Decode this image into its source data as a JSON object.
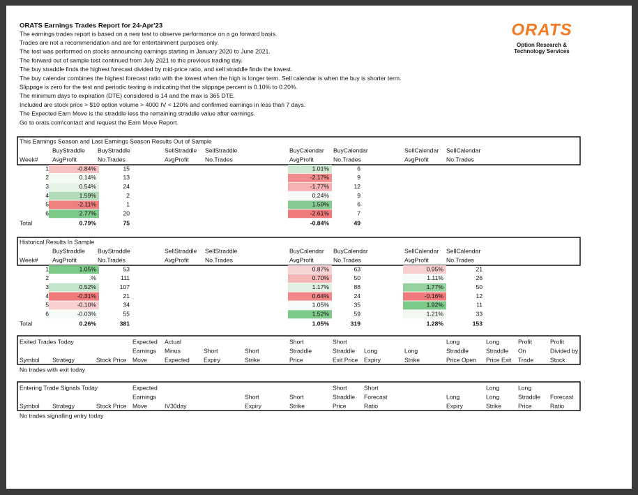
{
  "header": {
    "title": "ORATS Earnings Trades Report for 24-Apr'23",
    "lines": [
      "The earnings trades report is based on a new test to observe performance on a go forward basis.",
      "Trades are not a recommendation and are for entertainment purposes only.",
      "The test was performed on stocks announcing earnings starting in January 2020 to June 2021.",
      "The forward out of sample test continued from July 2021 to the previous trading day.",
      "The buy straddle finds the highest forecast divided by mid-price ratio, and sell straddle finds the lowest.",
      "The buy calendar combines the highest forecast ratio with the lowest when the high is longer term. Sell calendar is when the buy is shorter term.",
      "Slippage is zero for the test and periodic testing is indicating that the slippage percent is 0.10% to 0.20%.",
      "The minimum days to expiration (DTE) considered is 14 and the max is 365 DTE.",
      "Included are stock price > $10 option volume > 4000 IV < 120% and confirmed earnings in less than 7 days.",
      "The Expected Earn Move is the straddle less the remaining straddle value after earnings.",
      "Go to orats.com\\contact and request the Earn Move Report."
    ],
    "logo": {
      "name": "ORATS",
      "tagline": [
        "Option Research &",
        "Technology Services"
      ]
    }
  },
  "tables": [
    {
      "title": "This Earnings Season and Last Earnings Season Results Out of Sample",
      "columns": [
        [
          "Week#"
        ],
        [
          "BuyStraddle",
          "AvgProfit"
        ],
        [
          "BuyStraddle",
          "No.Trades"
        ],
        [
          "SellStraddle",
          "AvgProfit"
        ],
        [
          "SellStraddle",
          "No.Trades"
        ],
        [
          "BuyCalendar",
          "AvgProfit"
        ],
        [
          "BuyCalendar",
          "No.Trades"
        ],
        [
          "SellCalendar",
          "AvgProfit"
        ],
        [
          "SellCalendar",
          "No.Trades"
        ]
      ],
      "rows": [
        [
          "1",
          {
            "text": "-0.84%",
            "fill": "#f6c3c3"
          },
          "15",
          null,
          null,
          {
            "text": "1.01%",
            "fill": "#cfe9d2"
          },
          "6",
          null,
          null
        ],
        [
          "2",
          {
            "text": "0.14%",
            "fill": "#f3f9f3"
          },
          "13",
          null,
          null,
          {
            "text": "-2.17%",
            "fill": "#f28b8b"
          },
          "9",
          null,
          null
        ],
        [
          "3",
          {
            "text": "0.54%",
            "fill": "#e6f3e7"
          },
          "24",
          null,
          null,
          {
            "text": "-1.77%",
            "fill": "#f5b1b1"
          },
          "12",
          null,
          null
        ],
        [
          "4",
          {
            "text": "1.59%",
            "fill": "#b2ddb8"
          },
          "2",
          null,
          null,
          {
            "text": "0.24%",
            "fill": "#f6faf6"
          },
          "9",
          null,
          null
        ],
        [
          "5",
          {
            "text": "-2.11%",
            "fill": "#f07f7f"
          },
          "1",
          null,
          null,
          {
            "text": "1.59%",
            "fill": "#86cc92"
          },
          "6",
          null,
          null
        ],
        [
          "6",
          {
            "text": "2.77%",
            "fill": "#7cc98a"
          },
          "20",
          null,
          null,
          {
            "text": "-2.61%",
            "fill": "#f07a7a"
          },
          "7",
          null,
          null
        ]
      ],
      "total": [
        "Total",
        "0.79%",
        "75",
        null,
        null,
        "-0.84%",
        "49",
        null,
        null
      ]
    },
    {
      "title": "Historical Results In Sample",
      "columns": [
        [
          "Week#"
        ],
        [
          "BuyStraddle",
          "AvgProfit"
        ],
        [
          "BuyStraddle",
          "No.Trades"
        ],
        [
          "SellStraddle",
          "AvgProfit"
        ],
        [
          "SellStraddle",
          "No.Trades"
        ],
        [
          "BuyCalendar",
          "AvgProfit"
        ],
        [
          "BuyCalendar",
          "No.Trades"
        ],
        [
          "SellCalendar",
          "AvgProfit"
        ],
        [
          "SellCalendar",
          "No.Trades"
        ]
      ],
      "rows": [
        [
          "1",
          {
            "text": "1.05%",
            "fill": "#7cc98a"
          },
          "53",
          null,
          null,
          {
            "text": "0.87%",
            "fill": "#f8d3d3"
          },
          "63",
          {
            "text": "0.95%",
            "fill": "#f8d0d0"
          },
          "21"
        ],
        [
          "2",
          ".%",
          "111",
          null,
          null,
          {
            "text": "0.70%",
            "fill": "#f5b6b6"
          },
          "50",
          {
            "text": "1.11%",
            "fill": "#f7fbf7"
          },
          "26"
        ],
        [
          "3",
          {
            "text": "0.52%",
            "fill": "#c3e4c8"
          },
          "107",
          null,
          null,
          {
            "text": "1.17%",
            "fill": "#dff0e1"
          },
          "88",
          {
            "text": "1.77%",
            "fill": "#94d19e"
          },
          "50"
        ],
        [
          "4",
          {
            "text": "-0.31%",
            "fill": "#f07a7a"
          },
          "21",
          null,
          null,
          {
            "text": "0.64%",
            "fill": "#f28888"
          },
          "24",
          {
            "text": "-0.16%",
            "fill": "#f07a7a"
          },
          "12"
        ],
        [
          "5",
          {
            "text": "-0.10%",
            "fill": "#f8d0d0"
          },
          "34",
          null,
          null,
          {
            "text": "1.05%",
            "fill": "#f7fbf7"
          },
          "35",
          {
            "text": "1.92%",
            "fill": "#7cc98a"
          },
          "11"
        ],
        [
          "6",
          {
            "text": "-0.03%",
            "fill": "#f7fbf7"
          },
          "55",
          null,
          null,
          {
            "text": "1.52%",
            "fill": "#7cc98a"
          },
          "59",
          {
            "text": "1.21%",
            "fill": "#f1f8f1"
          },
          "33"
        ]
      ],
      "total": [
        "Total",
        "0.26%",
        "381",
        null,
        null,
        "1.05%",
        "319",
        "1.28%",
        "153"
      ]
    }
  ],
  "trade_tables": [
    {
      "title": "Exited Trades Today",
      "columns": [
        [
          "Symbol"
        ],
        [
          "Strategy"
        ],
        [
          "Stock Price"
        ],
        [
          "Expected",
          "Earnings",
          "Move"
        ],
        [
          "Actual",
          "Minus",
          "Expected"
        ],
        [
          "Short",
          "Expiry"
        ],
        [
          "Short",
          "Strike"
        ],
        [
          "Short",
          "Straddle",
          "Price"
        ],
        [
          "Short",
          "Straddle",
          "Exit Price"
        ],
        [
          "Long",
          "Expiry"
        ],
        [
          "Long",
          "Strike"
        ],
        [
          "Long",
          "Straddle",
          "Price Open"
        ],
        [
          "Long",
          "Straddle",
          "Price Exit"
        ],
        [
          "Profit",
          "On",
          "Trade"
        ],
        [
          "Profit",
          "Divided by",
          "Stock"
        ]
      ],
      "note": "No trades with exit today"
    },
    {
      "title": "Entering Trade Signals Today",
      "columns": [
        [
          "Symbol"
        ],
        [
          "Strategy"
        ],
        [
          "Stock Price"
        ],
        [
          "Expected",
          "Earnings",
          "Move"
        ],
        [
          "IV30day"
        ],
        [
          "Short",
          "Expiry"
        ],
        [
          "Short",
          "Strike"
        ],
        [
          "Short",
          "Straddle",
          "Price"
        ],
        [
          "Short",
          "Forecast",
          "Ratio"
        ],
        [
          "Long",
          "Expiry"
        ],
        [
          "Long",
          "Long",
          "Strike"
        ],
        [
          "Long",
          "Straddle",
          "Price"
        ],
        [
          "Forecast",
          "Ratio"
        ]
      ],
      "note": "No trades signalling entry today"
    }
  ]
}
